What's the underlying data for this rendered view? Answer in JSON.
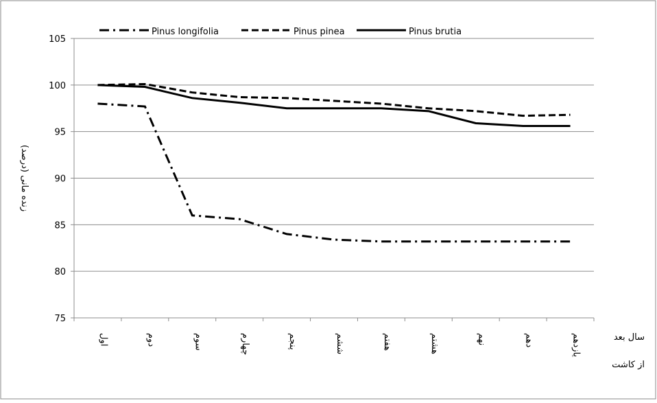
{
  "chart_data": {
    "type": "line",
    "y_label": "زنده مانی (درصد)",
    "x_label": [
      "سال بعد",
      "از کاشت"
    ],
    "categories": [
      "اول",
      "دوم",
      "سوم",
      "چهارم",
      "پنجم",
      "ششم",
      "هفتم",
      "هشتم",
      "نهم",
      "دهم",
      "یازدهم"
    ],
    "series": [
      {
        "name": "Pinus longifolia",
        "color": "#000000",
        "dash": "dashdot",
        "values": [
          98,
          97.7,
          86,
          85.6,
          84,
          83.4,
          83.2,
          83.2,
          83.2,
          83.2,
          83.2
        ]
      },
      {
        "name": "Pinus pinea",
        "color": "#000000",
        "dash": "dashed",
        "values": [
          100,
          100.1,
          99.2,
          98.7,
          98.6,
          98.3,
          98.0,
          97.5,
          97.2,
          96.7,
          96.8
        ]
      },
      {
        "name": "Pinus brutia",
        "color": "#000000",
        "dash": "solid",
        "values": [
          100,
          99.8,
          98.6,
          98.1,
          97.5,
          97.5,
          97.5,
          97.2,
          95.9,
          95.6,
          95.6
        ]
      }
    ],
    "ylim": [
      75,
      105
    ],
    "yticks": [
      75,
      80,
      85,
      90,
      95,
      100,
      105
    ],
    "grid": true,
    "legend": "top"
  }
}
